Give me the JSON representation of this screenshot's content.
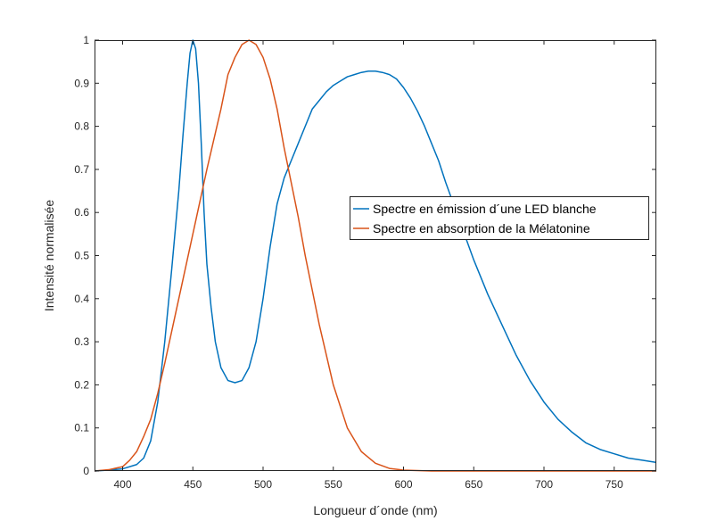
{
  "chart_data": {
    "type": "line",
    "title": "",
    "xlabel": "Longueur d´onde (nm)",
    "ylabel": "Intensité normalisée",
    "xlim": [
      380,
      780
    ],
    "ylim": [
      0,
      1
    ],
    "x_ticks": [
      400,
      450,
      500,
      550,
      600,
      650,
      700,
      750
    ],
    "y_ticks": [
      0,
      0.1,
      0.2,
      0.3,
      0.4,
      0.5,
      0.6,
      0.7,
      0.8,
      0.9,
      1
    ],
    "x_tick_labels": [
      "400",
      "450",
      "500",
      "550",
      "600",
      "650",
      "700",
      "750"
    ],
    "y_tick_labels": [
      "0",
      "0.1",
      "0.2",
      "0.3",
      "0.4",
      "0.5",
      "0.6",
      "0.7",
      "0.8",
      "0.9",
      "1"
    ],
    "grid": false,
    "legend_position": "center-right",
    "series": [
      {
        "name": "Spectre en émission d´une LED blanche",
        "color": "#0072BD",
        "x": [
          380,
          390,
          400,
          410,
          415,
          420,
          425,
          430,
          435,
          440,
          443,
          446,
          448,
          450,
          452,
          454,
          456,
          458,
          460,
          463,
          466,
          470,
          475,
          480,
          485,
          490,
          495,
          500,
          505,
          510,
          515,
          520,
          525,
          530,
          535,
          540,
          545,
          550,
          555,
          560,
          565,
          570,
          575,
          580,
          585,
          590,
          595,
          600,
          605,
          610,
          615,
          620,
          625,
          630,
          640,
          650,
          660,
          670,
          680,
          690,
          700,
          710,
          720,
          730,
          740,
          750,
          760,
          770,
          780
        ],
        "y": [
          0.0,
          0.002,
          0.005,
          0.015,
          0.03,
          0.07,
          0.16,
          0.3,
          0.47,
          0.65,
          0.78,
          0.9,
          0.97,
          1.0,
          0.98,
          0.9,
          0.76,
          0.6,
          0.48,
          0.38,
          0.3,
          0.24,
          0.21,
          0.205,
          0.21,
          0.24,
          0.3,
          0.4,
          0.52,
          0.62,
          0.68,
          0.72,
          0.76,
          0.8,
          0.84,
          0.86,
          0.88,
          0.895,
          0.905,
          0.915,
          0.92,
          0.925,
          0.928,
          0.928,
          0.925,
          0.92,
          0.91,
          0.89,
          0.865,
          0.835,
          0.8,
          0.76,
          0.72,
          0.67,
          0.58,
          0.49,
          0.41,
          0.34,
          0.27,
          0.21,
          0.16,
          0.12,
          0.09,
          0.065,
          0.05,
          0.04,
          0.03,
          0.025,
          0.02
        ]
      },
      {
        "name": "Spectre en absorption de la Mélatonine",
        "color": "#D95319",
        "x": [
          380,
          390,
          400,
          405,
          410,
          415,
          420,
          425,
          430,
          440,
          450,
          460,
          470,
          475,
          480,
          485,
          490,
          495,
          500,
          505,
          510,
          515,
          520,
          525,
          530,
          540,
          550,
          560,
          570,
          580,
          590,
          600,
          610,
          620,
          640,
          660,
          700,
          750,
          780
        ],
        "y": [
          0.0,
          0.003,
          0.01,
          0.025,
          0.045,
          0.08,
          0.12,
          0.18,
          0.25,
          0.4,
          0.55,
          0.7,
          0.84,
          0.92,
          0.96,
          0.99,
          1.0,
          0.99,
          0.96,
          0.91,
          0.84,
          0.75,
          0.67,
          0.59,
          0.5,
          0.34,
          0.2,
          0.1,
          0.045,
          0.018,
          0.006,
          0.002,
          0.001,
          0.0,
          0.0,
          0.0,
          0.0,
          0.0,
          0.0
        ]
      }
    ]
  }
}
